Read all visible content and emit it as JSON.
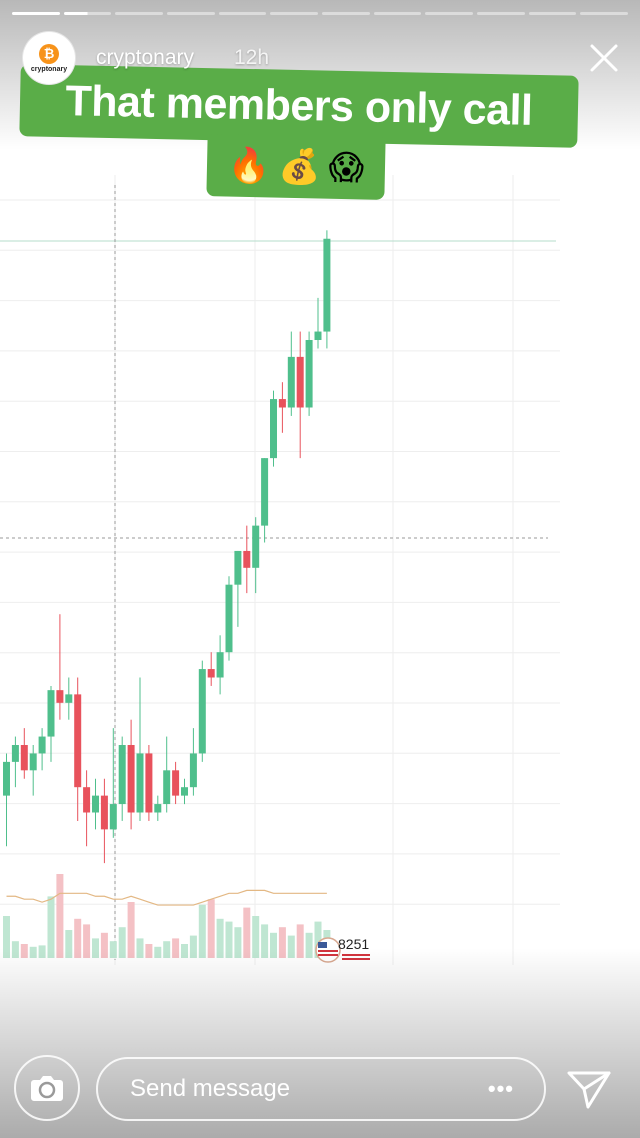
{
  "story": {
    "username": "cryptonary",
    "timestamp": "12h",
    "avatar_brand": "cryptonary",
    "avatar_symbol": "₿",
    "progress": {
      "total_segments": 12,
      "completed_segments": 1,
      "current_segment_fraction": 0.5
    }
  },
  "caption": {
    "line1": "That members only call",
    "emojis": [
      "🔥",
      "💰",
      "😱"
    ]
  },
  "chart_overlay": {
    "label": "8251"
  },
  "composer": {
    "placeholder": "Send message",
    "more_label": "•••"
  },
  "icons": {
    "close": "close-icon",
    "camera": "camera-icon",
    "send": "send-icon",
    "flag": "us-flag-icon"
  },
  "colors": {
    "caption_bg": "#5aad48",
    "candle_up": "#4fbf8c",
    "candle_down": "#e8525c",
    "volume_up": "#bfe6d2",
    "volume_down": "#f4c1c5",
    "moving_average": "#e3b884"
  },
  "chart_data": {
    "type": "candlestick",
    "candles": [
      {
        "o": 70,
        "h": 80,
        "l": 58,
        "c": 78
      },
      {
        "o": 78,
        "h": 84,
        "l": 72,
        "c": 82
      },
      {
        "o": 82,
        "h": 86,
        "l": 74,
        "c": 76
      },
      {
        "o": 76,
        "h": 82,
        "l": 70,
        "c": 80
      },
      {
        "o": 80,
        "h": 86,
        "l": 76,
        "c": 84
      },
      {
        "o": 84,
        "h": 96,
        "l": 78,
        "c": 95
      },
      {
        "o": 95,
        "h": 113,
        "l": 88,
        "c": 92
      },
      {
        "o": 92,
        "h": 98,
        "l": 88,
        "c": 94
      },
      {
        "o": 94,
        "h": 98,
        "l": 64,
        "c": 72
      },
      {
        "o": 72,
        "h": 76,
        "l": 58,
        "c": 66
      },
      {
        "o": 66,
        "h": 74,
        "l": 62,
        "c": 70
      },
      {
        "o": 70,
        "h": 74,
        "l": 54,
        "c": 62
      },
      {
        "o": 62,
        "h": 86,
        "l": 60,
        "c": 68
      },
      {
        "o": 68,
        "h": 84,
        "l": 64,
        "c": 82
      },
      {
        "o": 82,
        "h": 88,
        "l": 62,
        "c": 66
      },
      {
        "o": 66,
        "h": 98,
        "l": 64,
        "c": 80
      },
      {
        "o": 80,
        "h": 82,
        "l": 64,
        "c": 66
      },
      {
        "o": 66,
        "h": 70,
        "l": 64,
        "c": 68
      },
      {
        "o": 68,
        "h": 84,
        "l": 66,
        "c": 76
      },
      {
        "o": 76,
        "h": 78,
        "l": 68,
        "c": 70
      },
      {
        "o": 70,
        "h": 74,
        "l": 68,
        "c": 72
      },
      {
        "o": 72,
        "h": 86,
        "l": 70,
        "c": 80
      },
      {
        "o": 80,
        "h": 102,
        "l": 78,
        "c": 100
      },
      {
        "o": 100,
        "h": 104,
        "l": 96,
        "c": 98
      },
      {
        "o": 98,
        "h": 108,
        "l": 94,
        "c": 104
      },
      {
        "o": 104,
        "h": 122,
        "l": 102,
        "c": 120
      },
      {
        "o": 120,
        "h": 128,
        "l": 110,
        "c": 128
      },
      {
        "o": 128,
        "h": 134,
        "l": 118,
        "c": 124
      },
      {
        "o": 124,
        "h": 136,
        "l": 118,
        "c": 134
      },
      {
        "o": 134,
        "h": 150,
        "l": 130,
        "c": 150
      },
      {
        "o": 150,
        "h": 166,
        "l": 148,
        "c": 164
      },
      {
        "o": 164,
        "h": 168,
        "l": 156,
        "c": 162
      },
      {
        "o": 162,
        "h": 180,
        "l": 160,
        "c": 174
      },
      {
        "o": 174,
        "h": 180,
        "l": 150,
        "c": 162
      },
      {
        "o": 162,
        "h": 180,
        "l": 160,
        "c": 178
      },
      {
        "o": 178,
        "h": 188,
        "l": 176,
        "c": 180
      },
      {
        "o": 180,
        "h": 204,
        "l": 176,
        "c": 202
      }
    ],
    "volume": [
      30,
      12,
      10,
      8,
      9,
      44,
      60,
      20,
      28,
      24,
      14,
      18,
      12,
      22,
      40,
      14,
      10,
      8,
      12,
      14,
      10,
      16,
      38,
      42,
      28,
      26,
      22,
      36,
      30,
      24,
      18,
      22,
      16,
      24,
      18,
      26,
      20
    ],
    "volume_ma": [
      21,
      21,
      20,
      20,
      19,
      20,
      22,
      22,
      22,
      22,
      21,
      21,
      20,
      20,
      21,
      20,
      19,
      18,
      18,
      18,
      18,
      18,
      19,
      20,
      21,
      22,
      22,
      23,
      23,
      23,
      22,
      22,
      22,
      22,
      22,
      22,
      22
    ],
    "grid": true
  }
}
